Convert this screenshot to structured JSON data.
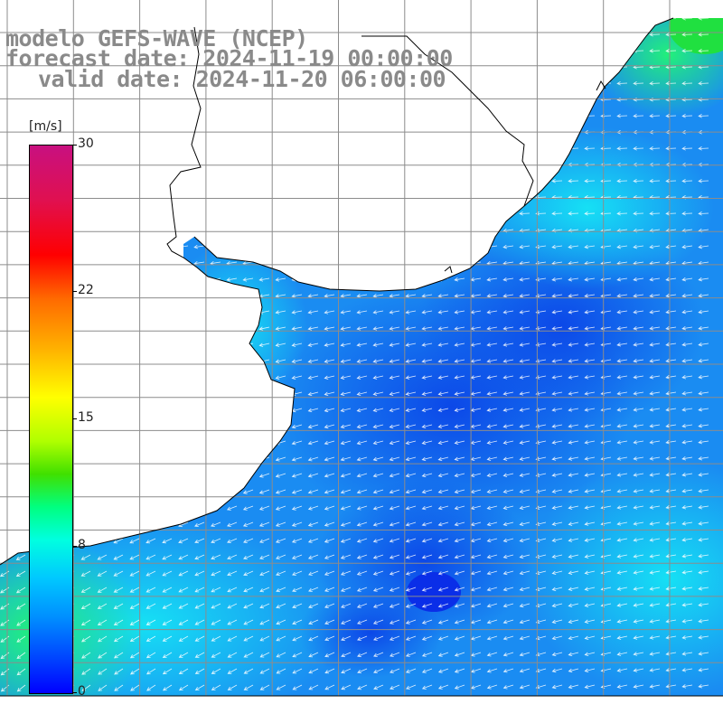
{
  "title": {
    "line1": "modelo GEFS-WAVE (NCEP)",
    "line2": "forecast date: 2024-11-19 00:00:00",
    "line3": "valid date: 2024-11-20 06:00:00"
  },
  "colorbar": {
    "unit": "[m/s]",
    "ticks": [
      {
        "label": "30",
        "value": 30
      },
      {
        "label": "22",
        "value": 22
      },
      {
        "label": "15",
        "value": 15
      },
      {
        "label": "8",
        "value": 8
      },
      {
        "label": "0",
        "value": 0
      }
    ],
    "min": 0,
    "max": 30
  },
  "colors": {
    "background": "#ffffff",
    "grid": "#8c8c8c",
    "coast": "#000000",
    "vector": "#ffffff",
    "title": "#8a8a8a"
  },
  "map": {
    "variable": "wind speed",
    "vector_field": "wind arrows"
  }
}
